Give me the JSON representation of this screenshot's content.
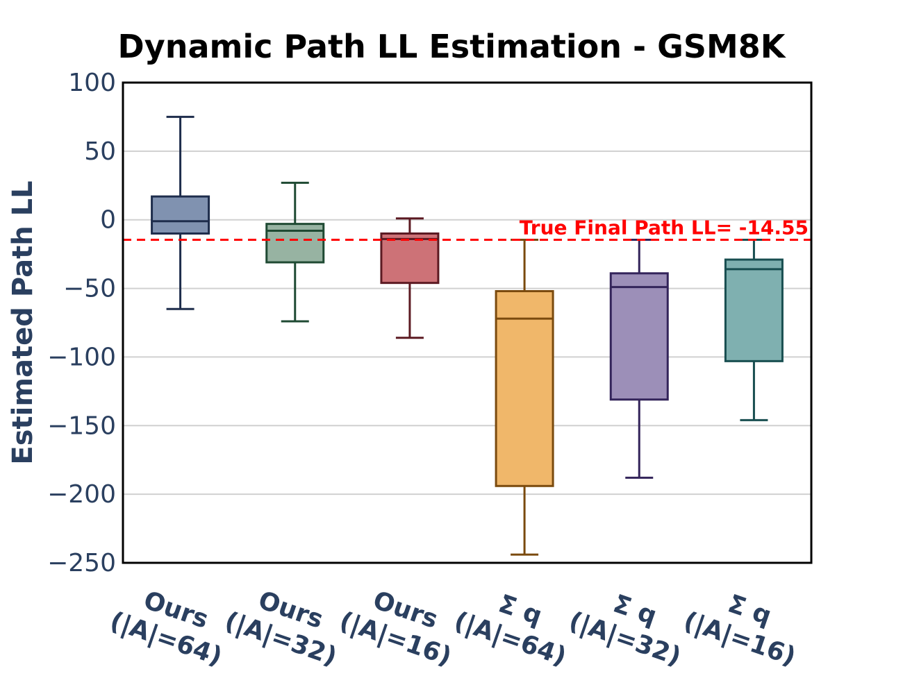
{
  "chart_data": {
    "type": "box",
    "title": "Dynamic Path LL Estimation - GSM8K",
    "xlabel": "",
    "ylabel": "Estimated Path LL",
    "ylim": [
      -250,
      100
    ],
    "yticks": [
      100,
      50,
      0,
      -50,
      -100,
      -150,
      -200,
      -250
    ],
    "ytick_labels": [
      "100",
      "50",
      "0",
      "−50",
      "−100",
      "−150",
      "−200",
      "−250"
    ],
    "grid": true,
    "reference_line": {
      "value": -14.55,
      "label": "True Final Path LL= -14.55",
      "color": "#ff0000",
      "style": "dashed"
    },
    "boxes": [
      {
        "name_line1": "Ours",
        "name_line2": "(|A|=64)",
        "whisker_low": -65,
        "q1": -10,
        "median": -1,
        "q3": 17,
        "whisker_high": 75,
        "fill": "#8092b0",
        "stroke": "#1e2d4c"
      },
      {
        "name_line1": "Ours",
        "name_line2": "(|A|=32)",
        "whisker_low": -74,
        "q1": -31,
        "median": -8,
        "q3": -3,
        "whisker_high": 27,
        "fill": "#97b3a2",
        "stroke": "#1f4a33"
      },
      {
        "name_line1": "Ours",
        "name_line2": "(|A|=16)",
        "whisker_low": -86,
        "q1": -46,
        "median": -14,
        "q3": -10,
        "whisker_high": 1,
        "fill": "#cd7277",
        "stroke": "#5c1a22"
      },
      {
        "name_line1": "Σ q",
        "name_line2": "(|A|=64)",
        "whisker_low": -244,
        "q1": -194,
        "median": -72,
        "q3": -52,
        "whisker_high": -14.55,
        "fill": "#f0b76a",
        "stroke": "#7a4a0e"
      },
      {
        "name_line1": "Σ q",
        "name_line2": "(|A|=32)",
        "whisker_low": -188,
        "q1": -131,
        "median": -49,
        "q3": -39,
        "whisker_high": -14.55,
        "fill": "#9c8fb8",
        "stroke": "#33245a"
      },
      {
        "name_line1": "Σ q",
        "name_line2": "(|A|=16)",
        "whisker_low": -146,
        "q1": -103,
        "median": -36,
        "q3": -29,
        "whisker_high": -14.55,
        "fill": "#7fb0b0",
        "stroke": "#184e50"
      }
    ],
    "axis_text_color": "#2a3f5f"
  }
}
